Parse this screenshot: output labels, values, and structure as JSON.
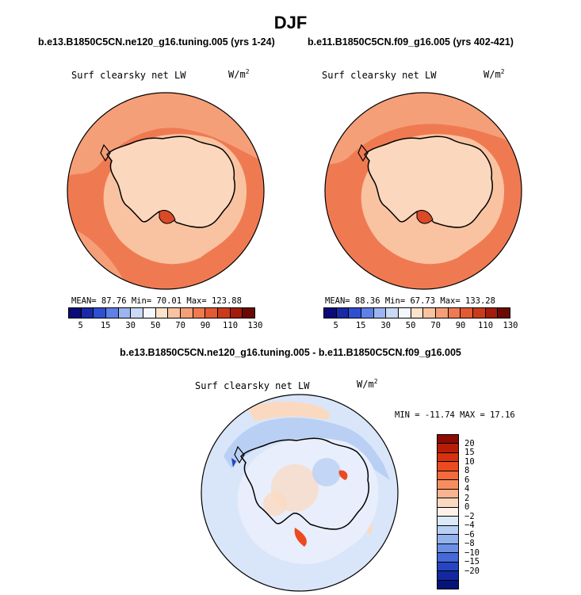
{
  "season": "DJF",
  "panels": [
    {
      "case": "b.e13.B1850C5CN.ne120_g16.tuning.005 (yrs 1-24)",
      "variable": "Surf clearsky net LW",
      "unit": "W/m",
      "unit_exp": "2",
      "stats": "MEAN=  87.76  Min=  70.01  Max= 123.88"
    },
    {
      "case": "b.e11.B1850C5CN.f09_g16.005 (yrs 402-421)",
      "variable": "Surf clearsky net LW",
      "unit": "W/m",
      "unit_exp": "2",
      "stats": "MEAN=  88.36  Min=  67.73  Max= 133.28"
    }
  ],
  "abs_colorbar": {
    "labels": [
      "5",
      "15",
      "30",
      "50",
      "70",
      "90",
      "110",
      "130"
    ],
    "colors": [
      "#0a0a78",
      "#1a2aa6",
      "#2f4fd2",
      "#5f80e6",
      "#9bb5f0",
      "#cad9f6",
      "#f4f8fd",
      "#fde2cc",
      "#f9c3a1",
      "#f59f78",
      "#ef7a52",
      "#e45a33",
      "#cc3a1c",
      "#a31c0c",
      "#6b0a02"
    ]
  },
  "diff": {
    "title": "b.e13.B1850C5CN.ne120_g16.tuning.005 - b.e11.B1850C5CN.f09_g16.005",
    "variable": "Surf clearsky net LW",
    "unit": "W/m",
    "unit_exp": "2",
    "minmax": "MIN = -11.74 MAX =  17.16",
    "colorbar_labels": [
      "20",
      "15",
      "10",
      "8",
      "6",
      "4",
      "2",
      "0",
      "−2",
      "−4",
      "−6",
      "−8",
      "−10",
      "−15",
      "−20"
    ],
    "colorbar_colors": [
      "#8c0b04",
      "#b61e08",
      "#d6320f",
      "#ec4a1f",
      "#f46a3c",
      "#f78e60",
      "#f9b38e",
      "#fbd9c1",
      "#fdf2e9",
      "#dce9f9",
      "#b9d0f4",
      "#92b2ee",
      "#6b90e6",
      "#4669d9",
      "#2745c2",
      "#1228a0",
      "#06137a"
    ]
  },
  "chart_data": [
    {
      "type": "map",
      "projection": "south-polar-stereographic",
      "title": "Surf clearsky net LW",
      "units": "W/m2",
      "subtitle": "b.e13.B1850C5CN.ne120_g16.tuning.005 (yrs 1-24)",
      "mean": 87.76,
      "min": 70.01,
      "max": 123.88,
      "contour_levels": [
        5,
        15,
        30,
        50,
        70,
        90,
        110,
        130
      ]
    },
    {
      "type": "map",
      "projection": "south-polar-stereographic",
      "title": "Surf clearsky net LW",
      "units": "W/m2",
      "subtitle": "b.e11.B1850C5CN.f09_g16.005 (yrs 402-421)",
      "mean": 88.36,
      "min": 67.73,
      "max": 133.28,
      "contour_levels": [
        5,
        15,
        30,
        50,
        70,
        90,
        110,
        130
      ]
    },
    {
      "type": "map",
      "projection": "south-polar-stereographic",
      "title": "Surf clearsky net LW",
      "units": "W/m2",
      "subtitle": "b.e13.B1850C5CN.ne120_g16.tuning.005 - b.e11.B1850C5CN.f09_g16.005",
      "min": -11.74,
      "max": 17.16,
      "contour_levels": [
        -20,
        -15,
        -10,
        -8,
        -6,
        -4,
        -2,
        0,
        2,
        4,
        6,
        8,
        10,
        15,
        20
      ]
    }
  ]
}
